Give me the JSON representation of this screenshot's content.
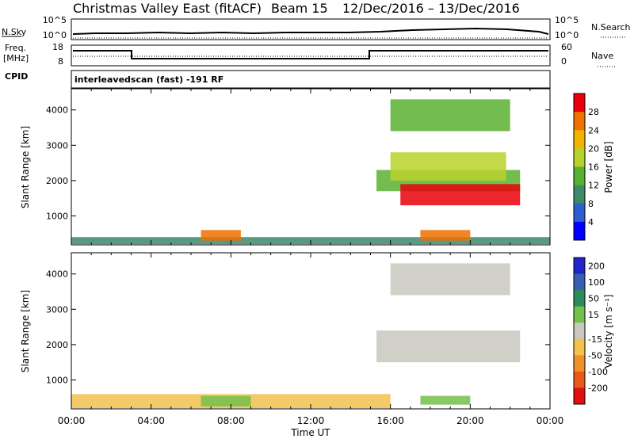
{
  "header": {
    "title": "Christmas Valley East (fitACF)",
    "beam": "Beam 15",
    "date_range": "12/Dec/2016 – 13/Dec/2016"
  },
  "nsky_panel": {
    "left_label": "N.Sky",
    "right_label": "N.Search",
    "left_ticks": [
      "10^5",
      "10^0"
    ],
    "right_ticks": [
      "10^5",
      "10^0"
    ]
  },
  "freq_panel": {
    "left_label_1": "Freq.",
    "left_label_2": "[MHz]",
    "right_label": "Nave",
    "left_ticks": [
      "18",
      "8"
    ],
    "right_ticks": [
      "60",
      "0"
    ]
  },
  "cpid": {
    "label": "CPID",
    "text": "interleavedscan (fast) -191 RF"
  },
  "colors": {
    "power": [
      "#0000ff",
      "#2f5fcf",
      "#3c8a6a",
      "#5ab030",
      "#b8d22c",
      "#f2b400",
      "#f07000",
      "#e8000a"
    ],
    "velocity_pos": [
      "#2026c8",
      "#3a5fb0",
      "#2c8a5c",
      "#73c04a"
    ],
    "velocity_neutral": "#c8c8c0",
    "velocity_neg": [
      "#f2c14e",
      "#f0902a",
      "#e85818",
      "#e01010"
    ]
  },
  "chart_data": [
    {
      "type": "heatmap",
      "name": "power",
      "ylabel": "Slant Range [km]",
      "xlabel": "",
      "x_ticks": [],
      "y_ticks": [
        "1000",
        "2000",
        "3000",
        "4000"
      ],
      "ylim": [
        180,
        4600
      ],
      "xlim_hours": [
        0,
        24
      ],
      "colorbar": {
        "label": "Power [dB]",
        "ticks": [
          "4",
          "8",
          "12",
          "16",
          "20",
          "24",
          "28"
        ]
      },
      "regions": [
        {
          "x": [
            0,
            24
          ],
          "y": [
            200,
            400
          ],
          "value": 8
        },
        {
          "x": [
            6.5,
            8.5
          ],
          "y": [
            300,
            600
          ],
          "value": 24
        },
        {
          "x": [
            15.3,
            22.5
          ],
          "y": [
            1700,
            2300
          ],
          "value": 14
        },
        {
          "x": [
            16.5,
            22.5
          ],
          "y": [
            1300,
            1900
          ],
          "value": 28
        },
        {
          "x": [
            16.0,
            21.8
          ],
          "y": [
            2000,
            2800
          ],
          "value": 18
        },
        {
          "x": [
            17.5,
            20.0
          ],
          "y": [
            300,
            600
          ],
          "value": 26
        },
        {
          "x": [
            16.0,
            22.0
          ],
          "y": [
            3400,
            4300
          ],
          "value": 12
        }
      ]
    },
    {
      "type": "heatmap",
      "name": "velocity",
      "ylabel": "Slant Range [km]",
      "xlabel": "Time UT",
      "x_ticks": [
        "00:00",
        "04:00",
        "08:00",
        "12:00",
        "16:00",
        "20:00",
        "00:00"
      ],
      "y_ticks": [
        "1000",
        "2000",
        "3000",
        "4000"
      ],
      "ylim": [
        180,
        4600
      ],
      "xlim_hours": [
        0,
        24
      ],
      "colorbar": {
        "label": "Velocity [m s⁻¹]",
        "ticks": [
          "200",
          "100",
          "50",
          "15",
          "-15",
          "-50",
          "-100",
          "-200"
        ]
      },
      "regions": [
        {
          "x": [
            0,
            16
          ],
          "y": [
            200,
            600
          ],
          "value": -30
        },
        {
          "x": [
            6.5,
            9.0
          ],
          "y": [
            250,
            550
          ],
          "value": 40
        },
        {
          "x": [
            15.3,
            22.5
          ],
          "y": [
            1500,
            2400
          ],
          "value": 0
        },
        {
          "x": [
            17.5,
            20.0
          ],
          "y": [
            300,
            550
          ],
          "value": 45
        },
        {
          "x": [
            16.0,
            22.0
          ],
          "y": [
            3400,
            4300
          ],
          "value": 0
        }
      ]
    }
  ]
}
